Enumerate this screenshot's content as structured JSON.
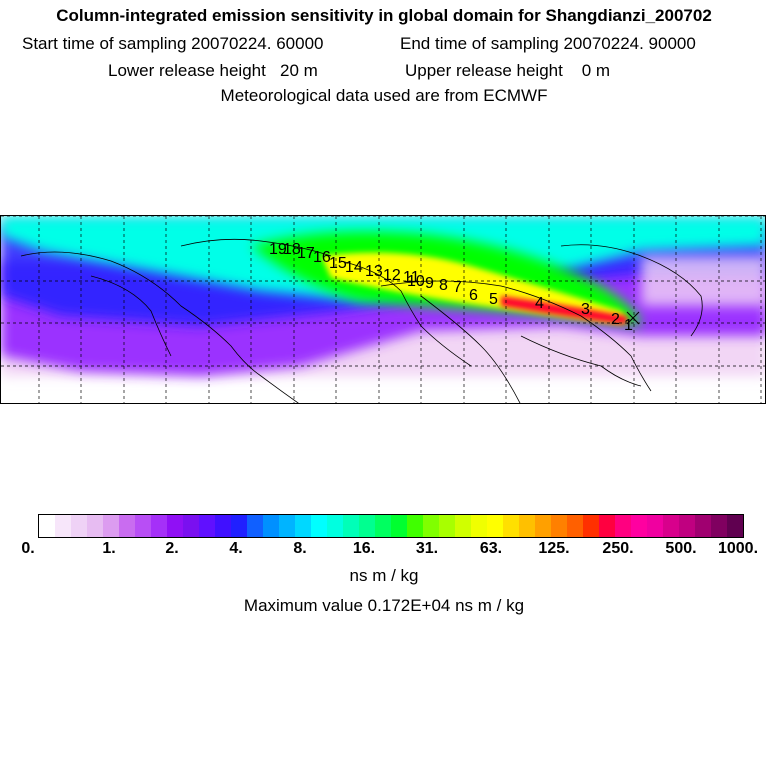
{
  "header": {
    "title": "Column-integrated emission sensitivity in global domain for Shangdianzi_200702",
    "start_time": "Start time of sampling 20070224. 60000",
    "end_time": "End time of sampling 20070224. 90000",
    "lower_release": "Lower release height   20 m",
    "upper_release": "Upper release height    0 m",
    "met_data": "Meteorological data used are from ECMWF"
  },
  "map": {
    "trajectory_labels": [
      "1",
      "2",
      "3",
      "4",
      "5",
      "6",
      "7",
      "8",
      "9",
      "10",
      "11",
      "12",
      "13",
      "14",
      "15",
      "16",
      "17",
      "18",
      "19"
    ],
    "plume_colors": {
      "low": "#f2d6f5",
      "medium_low": "#9b30ff",
      "mid": "#2020ff",
      "mid_high": "#00ffe8",
      "high": "#00ff00",
      "very_high": "#ffff00",
      "max": "#ff0030"
    }
  },
  "colorbar": {
    "tick_labels": [
      "0.",
      "1.",
      "2.",
      "4.",
      "8.",
      "16.",
      "31.",
      "63.",
      "125.",
      "250.",
      "500.",
      "1000."
    ],
    "colors": [
      "#ffffff",
      "#f7e6fa",
      "#efd2f6",
      "#e7bcf2",
      "#dc9cf0",
      "#c96cf0",
      "#b84ef5",
      "#a530f8",
      "#9010f5",
      "#7a10f0",
      "#6010ff",
      "#4010ff",
      "#2020ff",
      "#1060ff",
      "#0090ff",
      "#00b4ff",
      "#00d8ff",
      "#00ffff",
      "#00ffe0",
      "#00ffb8",
      "#00ff90",
      "#00ff60",
      "#00ff30",
      "#40ff00",
      "#80ff00",
      "#a8ff00",
      "#d0ff00",
      "#f0ff00",
      "#ffff00",
      "#ffe000",
      "#ffc000",
      "#ffa000",
      "#ff8000",
      "#ff6000",
      "#ff3000",
      "#ff0040",
      "#ff0080",
      "#ff00a0",
      "#f000a0",
      "#d8008c",
      "#c00080",
      "#a00070",
      "#800060",
      "#600050"
    ],
    "unit": "ns m / kg",
    "maximum": "Maximum value  0.172E+04 ns m / kg"
  }
}
